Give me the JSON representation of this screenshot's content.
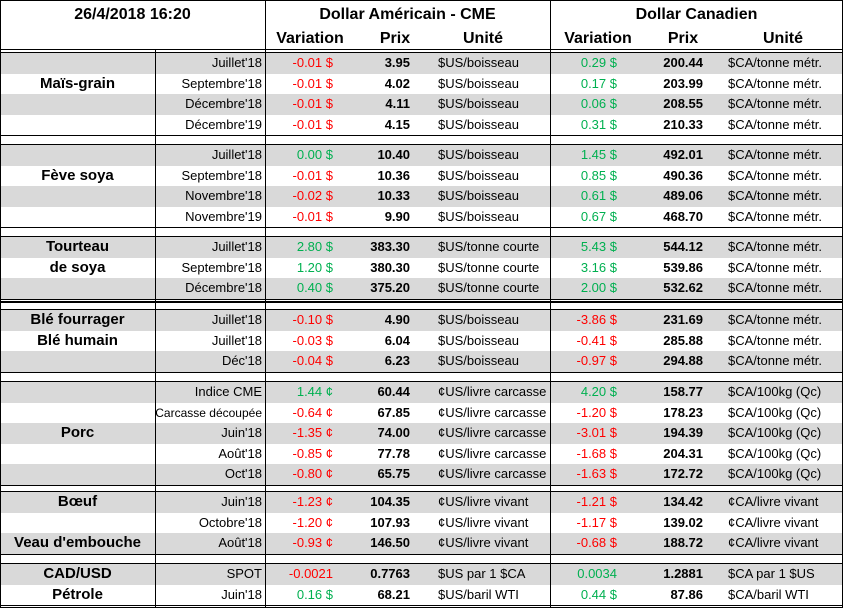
{
  "header": {
    "date": "26/4/2018 16:20",
    "usd_title": "Dollar Américain - CME",
    "cad_title": "Dollar Canadien",
    "columns": [
      "Variation",
      "Prix",
      "Unité",
      "Variation",
      "Prix",
      "Unité"
    ]
  },
  "groups": [
    {
      "rows": [
        {
          "cells": [
            "Juillet'18",
            "-0.01 $",
            "3.95",
            "$US/boisseau",
            "0.29 $",
            "200.44",
            "$CA/tonne métr."
          ]
        },
        {
          "product": "Maïs-grain",
          "cells": [
            "Septembre'18",
            "-0.01 $",
            "4.02",
            "$US/boisseau",
            "0.17 $",
            "203.99",
            "$CA/tonne métr."
          ]
        },
        {
          "cells": [
            "Décembre'18",
            "-0.01 $",
            "4.11",
            "$US/boisseau",
            "0.06 $",
            "208.55",
            "$CA/tonne métr."
          ]
        },
        {
          "cells": [
            "Décembre'19",
            "-0.01 $",
            "4.15",
            "$US/boisseau",
            "0.31 $",
            "210.33",
            "$CA/tonne métr."
          ]
        }
      ]
    },
    {
      "rows": [
        {
          "cells": [
            "Juillet'18",
            "0.00 $",
            "10.40",
            "$US/boisseau",
            "1.45 $",
            "492.01",
            "$CA/tonne métr."
          ]
        },
        {
          "product": "Fève soya",
          "cells": [
            "Septembre'18",
            "-0.01 $",
            "10.36",
            "$US/boisseau",
            "0.85 $",
            "490.36",
            "$CA/tonne métr."
          ]
        },
        {
          "cells": [
            "Novembre'18",
            "-0.02 $",
            "10.33",
            "$US/boisseau",
            "0.61 $",
            "489.06",
            "$CA/tonne métr."
          ]
        },
        {
          "cells": [
            "Novembre'19",
            "-0.01 $",
            "9.90",
            "$US/boisseau",
            "0.67 $",
            "468.70",
            "$CA/tonne métr."
          ]
        }
      ]
    },
    {
      "rows": [
        {
          "product": "Tourteau",
          "cells": [
            "Juillet'18",
            "2.80 $",
            "383.30",
            "$US/tonne courte",
            "5.43 $",
            "544.12",
            "$CA/tonne métr."
          ]
        },
        {
          "product": "de soya",
          "cells": [
            "Septembre'18",
            "1.20 $",
            "380.30",
            "$US/tonne courte",
            "3.16 $",
            "539.86",
            "$CA/tonne métr."
          ]
        },
        {
          "cells": [
            "Décembre'18",
            "0.40 $",
            "375.20",
            "$US/tonne courte",
            "2.00 $",
            "532.62",
            "$CA/tonne métr."
          ]
        }
      ]
    },
    {
      "rows": [
        {
          "product": "Blé fourrager",
          "cells": [
            "Juillet'18",
            "-0.10 $",
            "4.90",
            "$US/boisseau",
            "-3.86 $",
            "231.69",
            "$CA/tonne métr."
          ]
        },
        {
          "product": "Blé humain",
          "cells": [
            "Juillet'18",
            "-0.03 $",
            "6.04",
            "$US/boisseau",
            "-0.41 $",
            "285.88",
            "$CA/tonne métr."
          ]
        },
        {
          "cells": [
            "Déc'18",
            "-0.04 $",
            "6.23",
            "$US/boisseau",
            "-0.97 $",
            "294.88",
            "$CA/tonne métr."
          ]
        }
      ]
    },
    {
      "rows": [
        {
          "cells": [
            "Indice CME",
            "1.44 ¢",
            "60.44",
            "¢US/livre carcasse",
            "4.20 $",
            "158.77",
            "$CA/100kg (Qc)"
          ]
        },
        {
          "cells": [
            "Carcasse découpée",
            "-0.64 ¢",
            "67.85",
            "¢US/livre carcasse",
            "-1.20 $",
            "178.23",
            "$CA/100kg (Qc)"
          ]
        },
        {
          "product": "Porc",
          "cells": [
            "Juin'18",
            "-1.35 ¢",
            "74.00",
            "¢US/livre carcasse",
            "-3.01 $",
            "194.39",
            "$CA/100kg (Qc)"
          ]
        },
        {
          "cells": [
            "Août'18",
            "-0.85 ¢",
            "77.78",
            "¢US/livre carcasse",
            "-1.68 $",
            "204.31",
            "$CA/100kg (Qc)"
          ]
        },
        {
          "cells": [
            "Oct'18",
            "-0.80 ¢",
            "65.75",
            "¢US/livre carcasse",
            "-1.63 $",
            "172.72",
            "$CA/100kg (Qc)"
          ]
        }
      ]
    },
    {
      "rows": [
        {
          "product": "Bœuf",
          "cells": [
            "Juin'18",
            "-1.23 ¢",
            "104.35",
            "¢US/livre vivant",
            "-1.21 $",
            "134.42",
            "¢CA/livre vivant"
          ]
        },
        {
          "cells": [
            "Octobre'18",
            "-1.20 ¢",
            "107.93",
            "¢US/livre vivant",
            "-1.17 $",
            "139.02",
            "¢CA/livre vivant"
          ]
        },
        {
          "product": "Veau d'embouche",
          "cells": [
            "Août'18",
            "-0.93 ¢",
            "146.50",
            "¢US/livre vivant",
            "-0.68 $",
            "188.72",
            "¢CA/livre vivant"
          ]
        }
      ]
    },
    {
      "rows": [
        {
          "product": "CAD/USD",
          "cells": [
            "SPOT",
            "-0.0021",
            "0.7763",
            "$US par 1 $CA",
            "0.0034",
            "1.2881",
            "$CA par 1 $US"
          ]
        },
        {
          "product": "Pétrole",
          "cells": [
            "Juin'18",
            "0.16 $",
            "68.21",
            "$US/baril WTI",
            "0.44 $",
            "87.86",
            "$CA/baril WTI"
          ]
        }
      ]
    }
  ]
}
